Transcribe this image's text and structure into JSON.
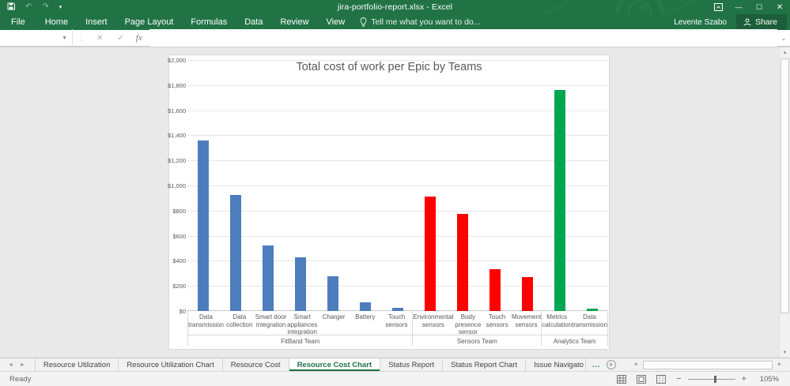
{
  "window": {
    "title": "jira-portfolio-report.xlsx - Excel",
    "user": "Levente Szabo",
    "share_label": "Share",
    "controls": [
      "ribbon-display-options",
      "minimize",
      "maximize",
      "close"
    ]
  },
  "quick_access": {
    "icons": [
      "save",
      "undo",
      "redo",
      "customize-quick-access"
    ]
  },
  "ribbon": {
    "tabs": [
      "File",
      "Home",
      "Insert",
      "Page Layout",
      "Formulas",
      "Data",
      "Review",
      "View"
    ],
    "tell_me": "Tell me what you want to do...",
    "tell_me_icon": "lightbulb-icon"
  },
  "formula_bar": {
    "name_box_value": "",
    "cancel_glyph": "✕",
    "enter_glyph": "✓",
    "fx_label": "fx",
    "formula_value": ""
  },
  "chart_data": {
    "type": "bar",
    "title": "Total cost of work per Epic by Teams",
    "xlabel": "",
    "ylabel": "",
    "ylim": [
      0,
      2000
    ],
    "ytick_step": 200,
    "ytick_prefix": "$",
    "grid": true,
    "legend": "none",
    "groups": [
      {
        "team": "FitBand Team",
        "color": "#4e7dbd",
        "epics": [
          {
            "label": "Data transmission",
            "value": 1360
          },
          {
            "label": "Data collection",
            "value": 925
          },
          {
            "label": "Smart door integration",
            "value": 520
          },
          {
            "label": "Smart appliances integration",
            "value": 430
          },
          {
            "label": "Charger",
            "value": 275
          },
          {
            "label": "Battery",
            "value": 70
          },
          {
            "label": "Touch sensors",
            "value": 25
          }
        ]
      },
      {
        "team": "Sensors Team",
        "color": "#fe0000",
        "epics": [
          {
            "label": "Environmental sensors",
            "value": 910
          },
          {
            "label": "Body presence sensor",
            "value": 775
          },
          {
            "label": "Touch sensors",
            "value": 335
          },
          {
            "label": "Movement sensors",
            "value": 270
          }
        ]
      },
      {
        "team": "Analytics Team",
        "color": "#00a651",
        "epics": [
          {
            "label": "Metrics calculation",
            "value": 1760
          },
          {
            "label": "Data transmission",
            "value": 20
          }
        ]
      }
    ]
  },
  "sheet_tabs": {
    "tabs": [
      {
        "label": "Resource Utilization",
        "active": false,
        "truncated": false
      },
      {
        "label": "Resource Utilization Chart",
        "active": false,
        "truncated": false
      },
      {
        "label": "Resource Cost",
        "active": false,
        "truncated": false
      },
      {
        "label": "Resource Cost Chart",
        "active": true,
        "truncated": false
      },
      {
        "label": "Status Report",
        "active": false,
        "truncated": false
      },
      {
        "label": "Status Report Chart",
        "active": false,
        "truncated": false
      },
      {
        "label": "Issue Navigato",
        "active": false,
        "truncated": true
      }
    ],
    "overflow_label": "...",
    "new_sheet_glyph": "+"
  },
  "status_bar": {
    "mode": "Ready",
    "zoom_level": "105%"
  }
}
